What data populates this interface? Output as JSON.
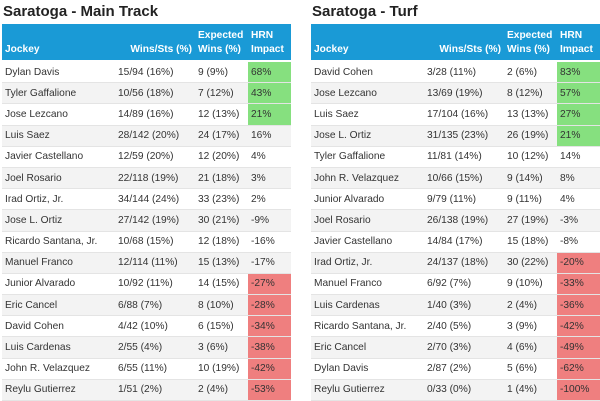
{
  "headers": {
    "jockey": "Jockey",
    "wins": "Wins/Sts (%)",
    "expected": "Expected Wins (%)",
    "hrn": "HRN Impact"
  },
  "colors": {
    "header": "#1a9ad6",
    "positive": "#86e07f",
    "negative": "#ef7f7f"
  },
  "tables": [
    {
      "title": "Saratoga - Main Track",
      "rows": [
        [
          "Dylan Davis",
          "15/94 (16%)",
          "9 (9%)",
          "68%"
        ],
        [
          "Tyler Gaffalione",
          "10/56 (18%)",
          "7 (12%)",
          "43%"
        ],
        [
          "Jose Lezcano",
          "14/89 (16%)",
          "12 (13%)",
          "21%"
        ],
        [
          "Luis Saez",
          "28/142 (20%)",
          "24 (17%)",
          "16%"
        ],
        [
          "Javier Castellano",
          "12/59 (20%)",
          "12 (20%)",
          "4%"
        ],
        [
          "Joel Rosario",
          "22/118 (19%)",
          "21 (18%)",
          "3%"
        ],
        [
          "Irad Ortiz, Jr.",
          "34/144 (24%)",
          "33 (23%)",
          "2%"
        ],
        [
          "Jose L. Ortiz",
          "27/142 (19%)",
          "30 (21%)",
          "-9%"
        ],
        [
          "Ricardo Santana, Jr.",
          "10/68 (15%)",
          "12 (18%)",
          "-16%"
        ],
        [
          "Manuel Franco",
          "12/114 (11%)",
          "15 (13%)",
          "-17%"
        ],
        [
          "Junior Alvarado",
          "10/92 (11%)",
          "14 (15%)",
          "-27%"
        ],
        [
          "Eric Cancel",
          "6/88 (7%)",
          "8 (10%)",
          "-28%"
        ],
        [
          "David Cohen",
          "4/42 (10%)",
          "6 (15%)",
          "-34%"
        ],
        [
          "Luis Cardenas",
          "2/55 (4%)",
          "3 (6%)",
          "-38%"
        ],
        [
          "John R. Velazquez",
          "6/55 (11%)",
          "10 (19%)",
          "-42%"
        ],
        [
          "Reylu Gutierrez",
          "1/51 (2%)",
          "2 (4%)",
          "-53%"
        ]
      ]
    },
    {
      "title": "Saratoga - Turf",
      "rows": [
        [
          "David Cohen",
          "3/28 (11%)",
          "2 (6%)",
          "83%"
        ],
        [
          "Jose Lezcano",
          "13/69 (19%)",
          "8 (12%)",
          "57%"
        ],
        [
          "Luis Saez",
          "17/104 (16%)",
          "13 (13%)",
          "27%"
        ],
        [
          "Jose L. Ortiz",
          "31/135 (23%)",
          "26 (19%)",
          "21%"
        ],
        [
          "Tyler Gaffalione",
          "11/81 (14%)",
          "10 (12%)",
          "14%"
        ],
        [
          "John R. Velazquez",
          "10/66 (15%)",
          "9 (14%)",
          "8%"
        ],
        [
          "Junior Alvarado",
          "9/79 (11%)",
          "9 (11%)",
          "4%"
        ],
        [
          "Joel Rosario",
          "26/138 (19%)",
          "27 (19%)",
          "-3%"
        ],
        [
          "Javier Castellano",
          "14/84 (17%)",
          "15 (18%)",
          "-8%"
        ],
        [
          "Irad Ortiz, Jr.",
          "24/137 (18%)",
          "30 (22%)",
          "-20%"
        ],
        [
          "Manuel Franco",
          "6/92 (7%)",
          "9 (10%)",
          "-33%"
        ],
        [
          "Luis Cardenas",
          "1/40 (3%)",
          "2 (4%)",
          "-36%"
        ],
        [
          "Ricardo Santana, Jr.",
          "2/40 (5%)",
          "3 (9%)",
          "-42%"
        ],
        [
          "Eric Cancel",
          "2/70 (3%)",
          "4 (6%)",
          "-49%"
        ],
        [
          "Dylan Davis",
          "2/87 (2%)",
          "5 (6%)",
          "-62%"
        ],
        [
          "Reylu Gutierrez",
          "0/33 (0%)",
          "1 (4%)",
          "-100%"
        ]
      ]
    }
  ]
}
